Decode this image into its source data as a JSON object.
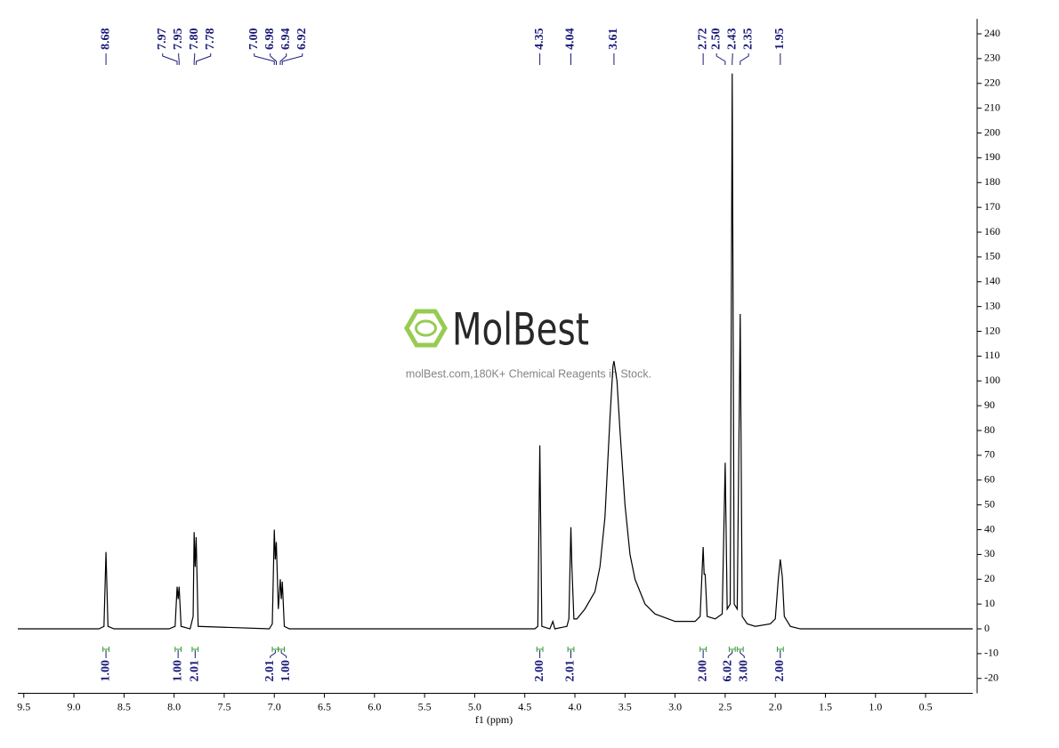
{
  "chart_data": {
    "type": "line",
    "color": "#000000",
    "x_label": "f1 (ppm)",
    "xlim": [
      9.56,
      0.03
    ],
    "xticks": [
      {
        "value": 9.5,
        "label": "9.5"
      },
      {
        "value": 9,
        "label": "9.0"
      },
      {
        "value": 8.5,
        "label": "8.5"
      },
      {
        "value": 8,
        "label": "8.0"
      },
      {
        "value": 7.5,
        "label": "7.5"
      },
      {
        "value": 7,
        "label": "7.0"
      },
      {
        "value": 6.5,
        "label": "6.5"
      },
      {
        "value": 6,
        "label": "6.0"
      },
      {
        "value": 5.5,
        "label": "5.5"
      },
      {
        "value": 5,
        "label": "5.0"
      },
      {
        "value": 4.5,
        "label": "4.5"
      },
      {
        "value": 4,
        "label": "4.0"
      },
      {
        "value": 3.5,
        "label": "3.5"
      },
      {
        "value": 3,
        "label": "3.0"
      },
      {
        "value": 2.5,
        "label": "2.5"
      },
      {
        "value": 2,
        "label": "2.0"
      },
      {
        "value": 1.5,
        "label": "1.5"
      },
      {
        "value": 1,
        "label": "1.0"
      },
      {
        "value": 0.5,
        "label": "0.5"
      }
    ],
    "ylim": [
      -26,
      246
    ],
    "yticks": [
      -20,
      -10,
      0,
      10,
      20,
      30,
      40,
      50,
      60,
      70,
      80,
      90,
      100,
      110,
      120,
      130,
      140,
      150,
      160,
      170,
      180,
      190,
      200,
      210,
      220,
      230,
      240
    ],
    "x": [
      9.56,
      8.75,
      8.7,
      8.68,
      8.66,
      8.6,
      8.05,
      7.99,
      7.97,
      7.96,
      7.95,
      7.93,
      7.84,
      7.81,
      7.8,
      7.79,
      7.78,
      7.76,
      7.05,
      7.02,
      7.0,
      6.99,
      6.98,
      6.96,
      6.94,
      6.93,
      6.92,
      6.9,
      6.85,
      4.4,
      4.37,
      4.35,
      4.33,
      4.25,
      4.22,
      4.2,
      4.08,
      4.06,
      4.04,
      4.03,
      4.01,
      3.98,
      3.9,
      3.8,
      3.75,
      3.7,
      3.65,
      3.62,
      3.61,
      3.58,
      3.55,
      3.5,
      3.45,
      3.4,
      3.3,
      3.2,
      3.0,
      2.8,
      2.75,
      2.72,
      2.71,
      2.7,
      2.68,
      2.6,
      2.53,
      2.5,
      2.48,
      2.45,
      2.43,
      2.41,
      2.38,
      2.35,
      2.33,
      2.28,
      2.2,
      2.05,
      2.0,
      1.97,
      1.95,
      1.93,
      1.91,
      1.85,
      1.75,
      0.03
    ],
    "values": [
      0,
      0,
      1,
      31,
      1,
      0,
      0,
      1,
      17,
      12,
      17,
      1,
      0,
      5,
      39,
      25,
      37,
      1,
      0,
      2,
      40,
      28,
      35,
      8,
      20,
      12,
      19,
      1,
      0,
      0,
      1,
      74,
      1,
      0,
      3,
      0,
      1,
      4,
      41,
      25,
      4,
      4,
      8,
      15,
      25,
      45,
      85,
      106,
      108,
      100,
      80,
      50,
      30,
      20,
      10,
      6,
      3,
      3,
      5,
      33,
      22,
      22,
      5,
      4,
      6,
      67,
      8,
      10,
      224,
      10,
      8,
      127,
      5,
      2,
      1,
      2,
      4,
      20,
      28,
      21,
      5,
      1,
      0,
      0
    ],
    "peaks": [
      {
        "value": 8.68,
        "label": "8.68"
      },
      {
        "value": 7.97,
        "label": "7.97"
      },
      {
        "value": 7.95,
        "label": "7.95"
      },
      {
        "value": 7.8,
        "label": "7.80"
      },
      {
        "value": 7.78,
        "label": "7.78"
      },
      {
        "value": 7.0,
        "label": "7.00"
      },
      {
        "value": 6.98,
        "label": "6.98"
      },
      {
        "value": 6.94,
        "label": "6.94"
      },
      {
        "value": 6.92,
        "label": "6.92"
      },
      {
        "value": 4.35,
        "label": "4.35"
      },
      {
        "value": 4.04,
        "label": "4.04"
      },
      {
        "value": 3.61,
        "label": "3.61"
      },
      {
        "value": 2.72,
        "label": "2.72"
      },
      {
        "value": 2.5,
        "label": "2.50"
      },
      {
        "value": 2.43,
        "label": "2.43"
      },
      {
        "value": 2.35,
        "label": "2.35"
      },
      {
        "value": 1.95,
        "label": "1.95"
      }
    ],
    "integrals": [
      {
        "range": [
          8.71,
          8.65
        ],
        "value": 1.0,
        "label": "1.00"
      },
      {
        "range": [
          7.99,
          7.93
        ],
        "value": 1.0,
        "label": "1.00"
      },
      {
        "range": [
          7.82,
          7.76
        ],
        "value": 2.01,
        "label": "2.01"
      },
      {
        "range": [
          7.02,
          6.96
        ],
        "value": 2.01,
        "label": "2.01"
      },
      {
        "range": [
          6.96,
          6.9
        ],
        "value": 1.0,
        "label": "1.00"
      },
      {
        "range": [
          4.38,
          4.32
        ],
        "value": 2.0,
        "label": "2.00"
      },
      {
        "range": [
          4.07,
          4.01
        ],
        "value": 2.01,
        "label": "2.01"
      },
      {
        "range": [
          2.75,
          2.69
        ],
        "value": 2.0,
        "label": "2.00"
      },
      {
        "range": [
          2.46,
          2.4
        ],
        "value": 6.02,
        "label": "6.02"
      },
      {
        "range": [
          2.38,
          2.32
        ],
        "value": 3.0,
        "label": "3.00"
      },
      {
        "range": [
          1.98,
          1.92
        ],
        "value": 2.0,
        "label": "2.00"
      }
    ],
    "watermark": {
      "brand": "MolBest",
      "tagline": "molBest.com,180K+ Chemical Reagents in Stock."
    }
  }
}
